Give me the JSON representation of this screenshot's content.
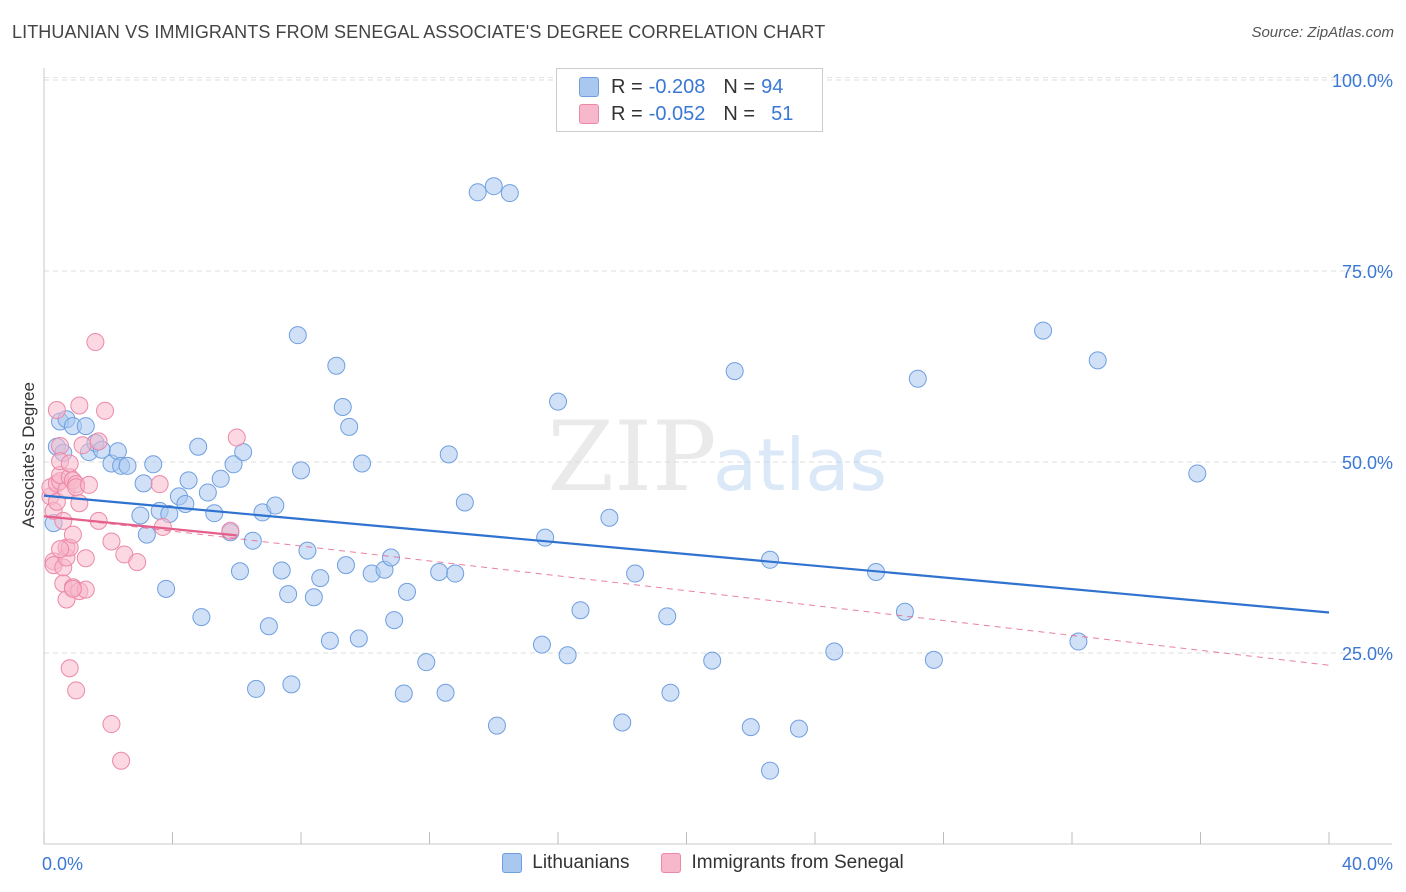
{
  "title": "LITHUANIAN VS IMMIGRANTS FROM SENEGAL ASSOCIATE'S DEGREE CORRELATION CHART",
  "source": "Source: ZipAtlas.com",
  "watermark": {
    "zip": "ZIP",
    "atlas": "atlas"
  },
  "legend_top": [
    {
      "r_label": "R =",
      "r_value": "-0.208",
      "n_label": "N =",
      "n_value": "94",
      "color": "#a9c8f0",
      "border": "#6f9fe0"
    },
    {
      "r_label": "R =",
      "r_value": "-0.052",
      "n_label": "N =",
      "n_value": "51",
      "color": "#f7b8cb",
      "border": "#ec88a8"
    }
  ],
  "legend_bottom": [
    {
      "label": "Lithuanians",
      "color": "#a9c8f0",
      "border": "#6f9fe0"
    },
    {
      "label": "Immigrants from Senegal",
      "color": "#f7b8cb",
      "border": "#ec88a8"
    }
  ],
  "chart_data": {
    "type": "scatter",
    "title": "LITHUANIAN VS IMMIGRANTS FROM SENEGAL ASSOCIATE'S DEGREE CORRELATION CHART",
    "xlabel": "",
    "ylabel": "Associate's Degree",
    "xlim": [
      0,
      40
    ],
    "ylim": [
      0,
      105
    ],
    "x_tick_labels": [
      "0.0%",
      "40.0%"
    ],
    "y_ticks": [
      25,
      50,
      75,
      100
    ],
    "y_tick_labels": [
      "25.0%",
      "50.0%",
      "75.0%",
      "100.0%"
    ],
    "grid": true,
    "series": [
      {
        "name": "Lithuanians",
        "color": "#6f9fe0",
        "fill": "#a9c8f0",
        "trend": {
          "x": [
            0,
            40
          ],
          "y": [
            45.6,
            30.3
          ],
          "color": "#2f72d0",
          "style": "solid"
        },
        "points": [
          [
            0.3,
            42
          ],
          [
            0.4,
            52
          ],
          [
            0.5,
            55.3
          ],
          [
            0.7,
            55.6
          ],
          [
            0.9,
            54.7
          ],
          [
            1.3,
            54.7
          ],
          [
            1.4,
            51.3
          ],
          [
            1.6,
            52.5
          ],
          [
            1.8,
            51.6
          ],
          [
            2.1,
            49.8
          ],
          [
            2.3,
            51.4
          ],
          [
            2.4,
            49.5
          ],
          [
            2.6,
            49.5
          ],
          [
            3.0,
            43.0
          ],
          [
            3.1,
            47.2
          ],
          [
            3.2,
            40.5
          ],
          [
            3.4,
            49.7
          ],
          [
            3.6,
            43.6
          ],
          [
            3.8,
            33.4
          ],
          [
            3.9,
            43.2
          ],
          [
            4.2,
            45.5
          ],
          [
            4.4,
            44.5
          ],
          [
            4.5,
            47.6
          ],
          [
            4.8,
            52.0
          ],
          [
            4.9,
            29.7
          ],
          [
            5.1,
            46.0
          ],
          [
            5.3,
            43.3
          ],
          [
            5.5,
            47.8
          ],
          [
            5.8,
            40.8
          ],
          [
            5.9,
            49.7
          ],
          [
            6.1,
            35.7
          ],
          [
            6.2,
            51.3
          ],
          [
            6.5,
            39.7
          ],
          [
            6.6,
            20.3
          ],
          [
            6.8,
            43.4
          ],
          [
            7.0,
            28.5
          ],
          [
            7.2,
            44.3
          ],
          [
            7.4,
            35.8
          ],
          [
            7.6,
            32.7
          ],
          [
            7.7,
            20.9
          ],
          [
            7.9,
            66.6
          ],
          [
            8.0,
            48.9
          ],
          [
            8.2,
            38.4
          ],
          [
            8.4,
            32.3
          ],
          [
            8.6,
            34.8
          ],
          [
            8.9,
            26.6
          ],
          [
            9.1,
            62.6
          ],
          [
            9.3,
            57.2
          ],
          [
            9.4,
            36.5
          ],
          [
            9.5,
            54.6
          ],
          [
            9.8,
            26.9
          ],
          [
            9.9,
            49.8
          ],
          [
            10.2,
            35.4
          ],
          [
            10.6,
            35.9
          ],
          [
            10.8,
            37.5
          ],
          [
            10.9,
            29.3
          ],
          [
            11.2,
            19.7
          ],
          [
            11.3,
            33.0
          ],
          [
            11.9,
            23.8
          ],
          [
            12.3,
            35.6
          ],
          [
            12.5,
            19.8
          ],
          [
            12.6,
            51.0
          ],
          [
            12.8,
            35.4
          ],
          [
            13.1,
            44.7
          ],
          [
            13.5,
            85.3
          ],
          [
            14.0,
            86.1
          ],
          [
            14.1,
            15.5
          ],
          [
            14.5,
            85.2
          ],
          [
            15.5,
            26.1
          ],
          [
            15.6,
            40.1
          ],
          [
            16.0,
            57.9
          ],
          [
            16.3,
            24.7
          ],
          [
            16.7,
            30.6
          ],
          [
            17.6,
            42.7
          ],
          [
            18.0,
            15.9
          ],
          [
            18.4,
            35.4
          ],
          [
            19.4,
            29.8
          ],
          [
            19.5,
            19.8
          ],
          [
            20.8,
            24.0
          ],
          [
            21.5,
            61.9
          ],
          [
            22.0,
            15.3
          ],
          [
            22.6,
            37.2
          ],
          [
            22.6,
            9.6
          ],
          [
            23.5,
            15.1
          ],
          [
            24.6,
            25.2
          ],
          [
            25.9,
            35.6
          ],
          [
            26.8,
            30.4
          ],
          [
            27.2,
            60.9
          ],
          [
            27.7,
            24.1
          ],
          [
            31.1,
            67.2
          ],
          [
            32.2,
            26.5
          ],
          [
            32.8,
            63.3
          ],
          [
            35.9,
            48.5
          ],
          [
            0.6,
            51.2
          ]
        ]
      },
      {
        "name": "Immigrants from Senegal",
        "color": "#ec88a8",
        "fill": "#f7b8cb",
        "trend_solid": {
          "x": [
            0,
            6
          ],
          "y": [
            42.9,
            40.4
          ],
          "color": "#e4608a"
        },
        "trend_dashed": {
          "x": [
            0,
            40
          ],
          "y": [
            42.9,
            23.4
          ],
          "color": "#e4608a"
        },
        "points": [
          [
            0.2,
            45.5
          ],
          [
            0.2,
            46.7
          ],
          [
            0.3,
            43.6
          ],
          [
            0.3,
            37.0
          ],
          [
            0.3,
            36.5
          ],
          [
            0.4,
            44.8
          ],
          [
            0.4,
            47.2
          ],
          [
            0.4,
            56.8
          ],
          [
            0.5,
            47.5
          ],
          [
            0.5,
            48.3
          ],
          [
            0.5,
            52.1
          ],
          [
            0.5,
            50.1
          ],
          [
            0.6,
            42.3
          ],
          [
            0.6,
            36.2
          ],
          [
            0.6,
            34.1
          ],
          [
            0.7,
            32.0
          ],
          [
            0.7,
            37.5
          ],
          [
            0.7,
            38.8
          ],
          [
            0.7,
            46.3
          ],
          [
            0.8,
            48.0
          ],
          [
            0.8,
            49.8
          ],
          [
            0.8,
            38.8
          ],
          [
            0.8,
            23.0
          ],
          [
            0.9,
            47.6
          ],
          [
            0.9,
            40.5
          ],
          [
            0.9,
            33.6
          ],
          [
            1.0,
            20.1
          ],
          [
            1.0,
            47.1
          ],
          [
            1.0,
            46.7
          ],
          [
            1.1,
            44.6
          ],
          [
            1.1,
            57.4
          ],
          [
            1.1,
            33.1
          ],
          [
            1.2,
            52.2
          ],
          [
            1.3,
            33.3
          ],
          [
            1.3,
            37.4
          ],
          [
            1.4,
            47.0
          ],
          [
            1.6,
            65.7
          ],
          [
            1.7,
            52.7
          ],
          [
            1.7,
            42.3
          ],
          [
            1.9,
            56.7
          ],
          [
            2.1,
            39.6
          ],
          [
            2.1,
            15.7
          ],
          [
            2.4,
            10.9
          ],
          [
            2.5,
            37.9
          ],
          [
            2.9,
            36.9
          ],
          [
            3.6,
            47.1
          ],
          [
            3.7,
            41.5
          ],
          [
            5.8,
            41.0
          ],
          [
            6.0,
            53.2
          ],
          [
            0.5,
            38.6
          ],
          [
            0.9,
            33.4
          ]
        ]
      }
    ]
  }
}
